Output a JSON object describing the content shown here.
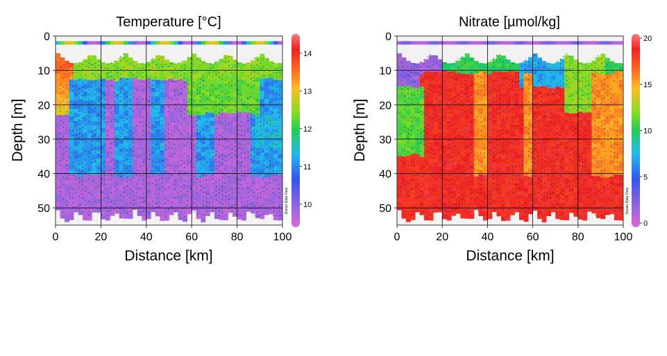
{
  "chart_data": [
    {
      "type": "heatmap",
      "title": "Temperature [°C]",
      "xlabel": "Distance [km]",
      "ylabel": "Depth [m]",
      "xlim": [
        0,
        100
      ],
      "ylim": [
        55,
        0
      ],
      "x_ticks": [
        "0",
        "20",
        "40",
        "60",
        "80",
        "100"
      ],
      "y_ticks": [
        "0",
        "10",
        "20",
        "30",
        "40",
        "50"
      ],
      "colorbar": {
        "range": [
          9.5,
          14.4
        ],
        "ticks": [
          "14",
          "13",
          "12",
          "11",
          "10"
        ],
        "colormap": [
          "#dd66dd",
          "#9966dd",
          "#3355ee",
          "#22bbee",
          "#22cc55",
          "#88dd22",
          "#ffbb22",
          "#ff6622",
          "#ee2222",
          "#ff7777"
        ]
      },
      "watermark": "Ocean Data View",
      "grid": true
    },
    {
      "type": "heatmap",
      "title": "Nitrate [µmol/kg]",
      "xlabel": "Distance [km]",
      "ylabel": "Depth [m]",
      "xlim": [
        0,
        100
      ],
      "ylim": [
        55,
        0
      ],
      "x_ticks": [
        "0",
        "20",
        "40",
        "60",
        "80",
        "100"
      ],
      "y_ticks": [
        "0",
        "10",
        "20",
        "30",
        "40",
        "50"
      ],
      "colorbar": {
        "range": [
          0,
          20
        ],
        "ticks": [
          "20",
          "15",
          "10",
          "5",
          "0"
        ],
        "colormap": [
          "#dd66dd",
          "#9966dd",
          "#3355ee",
          "#22bbee",
          "#22cc55",
          "#88dd22",
          "#ffbb22",
          "#ff6622",
          "#ee2222",
          "#ff7777"
        ]
      },
      "watermark": "Ocean Data View",
      "grid": true
    }
  ]
}
